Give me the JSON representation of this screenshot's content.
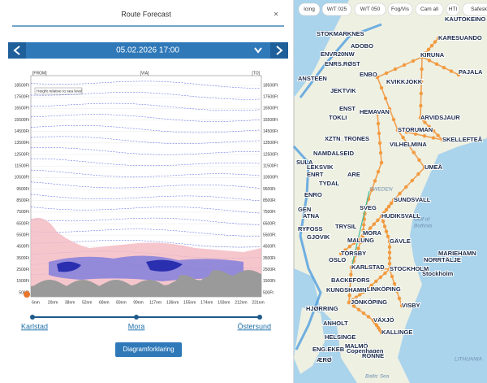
{
  "panel": {
    "title": "Route Forecast",
    "close": "×",
    "date": "05.02.2026 17:00",
    "button": "Diagramforklaring"
  },
  "chart": {
    "from": "[FROM]",
    "via": "[VIA]",
    "to": "[TO]",
    "note": "Height relative to sea level",
    "altitude_labels": [
      "18500Ft",
      "17500Ft",
      "16500Ft",
      "15500Ft",
      "14500Ft",
      "13500Ft",
      "12500Ft",
      "11500Ft",
      "10500Ft",
      "9500Ft",
      "8500Ft",
      "7500Ft",
      "6500Ft",
      "5500Ft",
      "4500Ft",
      "3500Ft",
      "2500Ft",
      "1500Ft",
      "500Ft"
    ],
    "distance_labels": [
      "6nm",
      "20nm",
      "38nm",
      "52nm",
      "68nm",
      "83nm",
      "99nm",
      "117nm",
      "136nm",
      "155nm",
      "174nm",
      "193nm",
      "212nm",
      "231nm"
    ]
  },
  "route": {
    "stops": [
      "Karlstad",
      "Mora",
      "Östersund"
    ]
  },
  "map": {
    "layer_buttons": [
      "Icing",
      "W/T 025",
      "W/T 050",
      "Fog/Vis",
      "Cam all",
      "HTI",
      "Safesk"
    ],
    "place_labels": [
      "KAUTOKEINO",
      "KARESUANDO",
      "STOKMARKNES",
      "ADOBO",
      "KIRUNA",
      "ENVR20NW",
      "ENRS.RØST",
      "PAJALA",
      "ANSTEEN",
      "ENBO",
      "KVIKKJOKK",
      "JEKTVIK",
      "ENST",
      "HEMAVAN",
      "TOKLI",
      "ARVIDSJAUR",
      "STORUMAN",
      "XZTN_TRONES",
      "SKELLEFTEÅ",
      "VILHELMINA",
      "NAMDALSEID",
      "SULA",
      "LEKSVIK",
      "UMEÅ",
      "ENRT",
      "ARE",
      "TYDAL",
      "SWEDEN",
      "ENRO",
      "SUNDSVALL",
      "SVEG",
      "GEN",
      "HUDIKSVALL",
      "ATNA",
      "Gulf of",
      "Bothnia",
      "TRYSIL",
      "RYFOSS",
      "MORA",
      "GJOVIK",
      "MALUNG",
      "GÄVLE",
      "TORSBY",
      "MARIEHAMN",
      "OSLO",
      "NORRTÄLJE",
      "KARLSTAD",
      "STOCKHOLM",
      "Stockholm",
      "BACKEFORS",
      "LINKÖPING",
      "KUNGSHAMN",
      "JÖNKÖPING",
      "VISBY",
      "HJØRRING",
      "VÄXJÖ",
      "ANHOLT",
      "KALLINGE",
      "HELSINGE",
      "MALMÖ",
      "Copenhagen",
      "ENG.EKEB",
      "RONNE",
      "ÆRØ",
      "LITHUANIA",
      "Baltic Sea"
    ]
  }
}
